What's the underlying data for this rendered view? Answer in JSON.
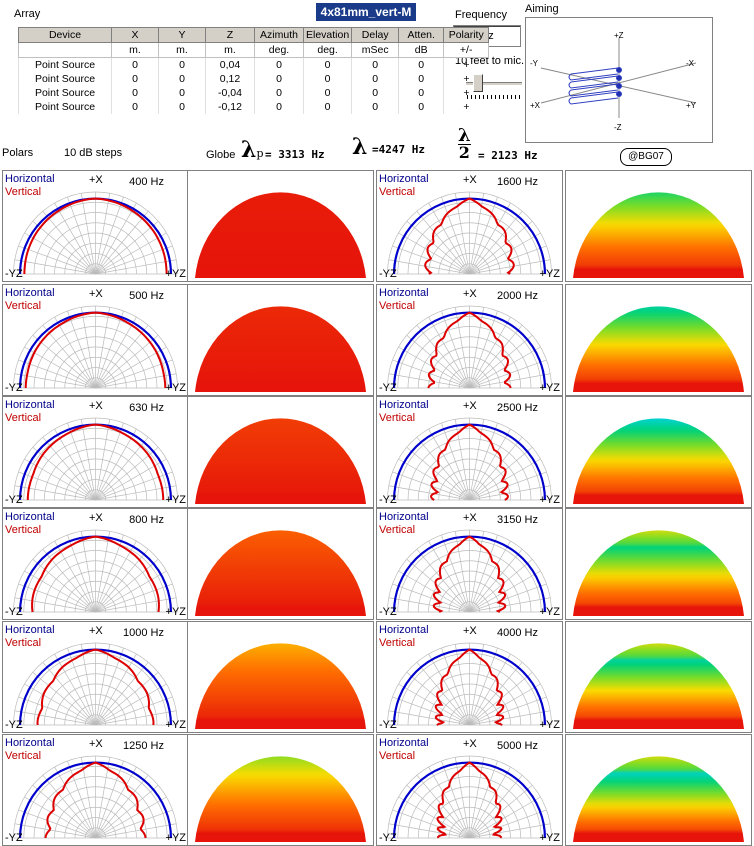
{
  "header": {
    "array_label": "Array",
    "file_title": "4x81mm_vert-M",
    "frequency_label": "Frequency",
    "frequency_unit": "Hz",
    "aiming_label": "Aiming",
    "distance_label": "10 feet to mic."
  },
  "array_table": {
    "columns": [
      "Device",
      "X",
      "Y",
      "Z",
      "Azimuth",
      "Elevation",
      "Delay",
      "Atten.",
      "Polarity"
    ],
    "units": [
      "",
      "m.",
      "m.",
      "m.",
      "deg.",
      "deg.",
      "mSec",
      "dB",
      "+/-"
    ],
    "rows": [
      [
        "Point Source",
        "0",
        "0",
        "0,04",
        "0",
        "0",
        "0",
        "0",
        "+"
      ],
      [
        "Point Source",
        "0",
        "0",
        "0,12",
        "0",
        "0",
        "0",
        "0",
        "+"
      ],
      [
        "Point Source",
        "0",
        "0",
        "-0,04",
        "0",
        "0",
        "0",
        "0",
        "+"
      ],
      [
        "Point Source",
        "0",
        "0",
        "-0,12",
        "0",
        "0",
        "0",
        "0",
        "+"
      ]
    ]
  },
  "aiming_axes": {
    "pz": "+Z",
    "nz": "-Z",
    "ny": "-Y",
    "px": "-X",
    "nx": "+X",
    "py": "+Y"
  },
  "info_bar": {
    "polars": "Polars",
    "steps": "10 dB steps",
    "globe": "Globe",
    "lambda_p": "= 3313 Hz",
    "lambda": "=4247 Hz",
    "lambda_half": "= 2123 Hz",
    "badge": "@BG07"
  },
  "polar_labels": {
    "horizontal": "Horizontal",
    "vertical": "Vertical",
    "top": "+X",
    "left": "-YZ",
    "right": "+YZ"
  },
  "colors": {
    "horizontal": "#0000cc",
    "vertical": "#dd0000"
  },
  "plots": [
    {
      "freq": "400 Hz",
      "narrow": 0.02
    },
    {
      "freq": "500 Hz",
      "narrow": 0.05
    },
    {
      "freq": "630 Hz",
      "narrow": 0.1
    },
    {
      "freq": "800 Hz",
      "narrow": 0.18
    },
    {
      "freq": "1000 Hz",
      "narrow": 0.32
    },
    {
      "freq": "1250 Hz",
      "narrow": 0.5
    },
    {
      "freq": "1600 Hz",
      "narrow": 0.62
    },
    {
      "freq": "2000 Hz",
      "narrow": 0.7
    },
    {
      "freq": "2500 Hz",
      "narrow": 0.76
    },
    {
      "freq": "3150 Hz",
      "narrow": 0.82
    },
    {
      "freq": "4000 Hz",
      "narrow": 0.87
    },
    {
      "freq": "5000 Hz",
      "narrow": 0.92
    }
  ]
}
